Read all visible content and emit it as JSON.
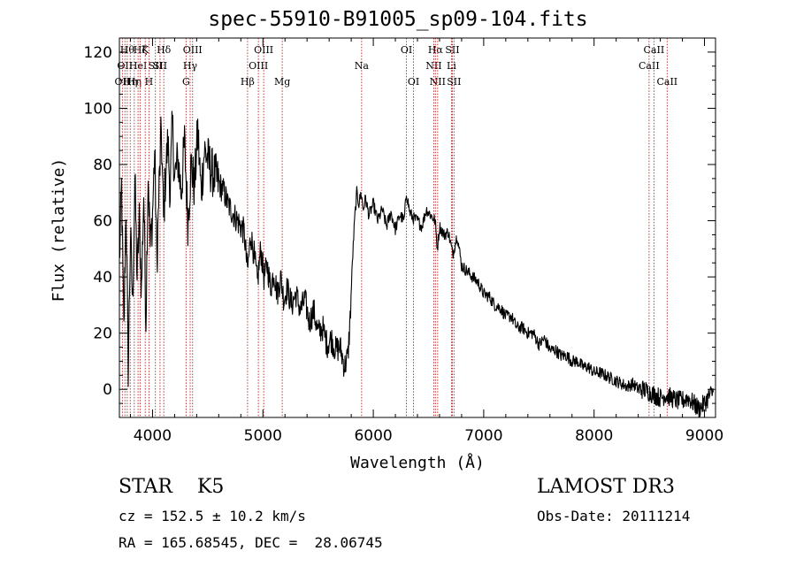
{
  "title": "spec-55910-B91005_sp09-104.fits",
  "info": {
    "class": "STAR",
    "subclass": "K5",
    "survey": "LAMOST DR3",
    "cz": "cz = 152.5 ± 10.2 km/s",
    "obs_date": "Obs-Date: 20111214",
    "radec": "RA = 165.68545, DEC =  28.06745"
  },
  "chart_data": {
    "type": "line",
    "title": "spec-55910-B91005_sp09-104.fits",
    "xlabel": "Wavelength (Å)",
    "ylabel": "Flux (relative)",
    "xlim": [
      3700,
      9100
    ],
    "ylim": [
      -10,
      125
    ],
    "xticks": [
      4000,
      5000,
      6000,
      7000,
      8000,
      9000
    ],
    "yticks": [
      0,
      20,
      40,
      60,
      80,
      100,
      120
    ],
    "series": [
      {
        "name": "spectrum",
        "x": [
          3700,
          3720,
          3740,
          3760,
          3780,
          3800,
          3820,
          3840,
          3860,
          3880,
          3900,
          3920,
          3940,
          3960,
          3980,
          4000,
          4020,
          4040,
          4060,
          4080,
          4100,
          4120,
          4140,
          4160,
          4180,
          4200,
          4230,
          4260,
          4290,
          4320,
          4350,
          4380,
          4410,
          4440,
          4470,
          4500,
          4530,
          4560,
          4590,
          4620,
          4650,
          4680,
          4710,
          4740,
          4770,
          4800,
          4830,
          4860,
          4890,
          4920,
          4950,
          4980,
          5010,
          5040,
          5070,
          5100,
          5130,
          5160,
          5190,
          5220,
          5260,
          5300,
          5340,
          5380,
          5420,
          5460,
          5500,
          5540,
          5580,
          5620,
          5660,
          5700,
          5740,
          5770,
          5790,
          5810,
          5830,
          5850,
          5870,
          5890,
          5910,
          5930,
          5960,
          6000,
          6040,
          6080,
          6120,
          6160,
          6200,
          6240,
          6280,
          6300,
          6330,
          6360,
          6400,
          6440,
          6480,
          6520,
          6560,
          6580,
          6600,
          6640,
          6680,
          6720,
          6760,
          6800,
          6850,
          6900,
          6950,
          7000,
          7050,
          7100,
          7150,
          7200,
          7250,
          7300,
          7350,
          7400,
          7450,
          7500,
          7550,
          7600,
          7650,
          7700,
          7750,
          7800,
          7850,
          7900,
          7950,
          8000,
          8050,
          8100,
          8150,
          8200,
          8250,
          8300,
          8350,
          8400,
          8450,
          8500,
          8550,
          8600,
          8650,
          8700,
          8750,
          8800,
          8850,
          8900,
          8950,
          9000,
          9050,
          9080
        ],
        "y": [
          45,
          72,
          20,
          65,
          8,
          55,
          30,
          75,
          40,
          60,
          35,
          70,
          25,
          78,
          50,
          62,
          85,
          45,
          72,
          92,
          60,
          78,
          88,
          70,
          95,
          75,
          82,
          70,
          88,
          60,
          80,
          72,
          92,
          70,
          85,
          82,
          78,
          76,
          74,
          72,
          70,
          66,
          64,
          62,
          60,
          58,
          56,
          42,
          55,
          48,
          38,
          50,
          40,
          44,
          36,
          42,
          34,
          40,
          32,
          36,
          30,
          34,
          28,
          32,
          24,
          28,
          20,
          22,
          16,
          18,
          14,
          15,
          8,
          12,
          25,
          45,
          60,
          70,
          66,
          70,
          64,
          68,
          62,
          66,
          60,
          64,
          58,
          63,
          57,
          62,
          60,
          70,
          63,
          61,
          60,
          58,
          64,
          62,
          60,
          50,
          58,
          55,
          56,
          48,
          55,
          44,
          42,
          40,
          38,
          34,
          33,
          30,
          29,
          26,
          26,
          22,
          22,
          20,
          20,
          16,
          18,
          14,
          14,
          12,
          12,
          10,
          10,
          8,
          8,
          6,
          6,
          5,
          4,
          3,
          2,
          1,
          2,
          0,
          0,
          -1,
          -2,
          -3,
          -2,
          -3,
          -4,
          -4,
          -3,
          -5,
          -7,
          -5,
          -2,
          -1
        ]
      }
    ],
    "line_markers": [
      {
        "wl": 3727,
        "label": "OII",
        "row": 3
      },
      {
        "wl": 3750,
        "label": "OII",
        "row": 2
      },
      {
        "wl": 3771,
        "label": "Hθ",
        "row": 1
      },
      {
        "wl": 3798,
        "label": "Hη",
        "row": 3
      },
      {
        "wl": 3835,
        "label": "Hη",
        "row": 3
      },
      {
        "wl": 3869,
        "label": "HeI",
        "row": 2
      },
      {
        "wl": 3889,
        "label": "Hζ",
        "row": 1
      },
      {
        "wl": 3934,
        "label": "K",
        "row": 1
      },
      {
        "wl": 3968,
        "label": "H",
        "row": 3
      },
      {
        "wl": 4026,
        "label": "SII",
        "row": 2
      },
      {
        "wl": 4068,
        "label": "SII",
        "row": 2
      },
      {
        "wl": 4102,
        "label": "Hδ",
        "row": 1
      },
      {
        "wl": 4304,
        "label": "G",
        "row": 3
      },
      {
        "wl": 4341,
        "label": "Hγ",
        "row": 2
      },
      {
        "wl": 4363,
        "label": "OIII",
        "row": 1
      },
      {
        "wl": 4861,
        "label": "Hβ",
        "row": 3
      },
      {
        "wl": 4959,
        "label": "OIII",
        "row": 2
      },
      {
        "wl": 5007,
        "label": "OIII",
        "row": 1
      },
      {
        "wl": 5175,
        "label": "Mg",
        "row": 3
      },
      {
        "wl": 5894,
        "label": "Na",
        "row": 2
      },
      {
        "wl": 6300,
        "label": "OI",
        "row": 1
      },
      {
        "wl": 6364,
        "label": "OI",
        "row": 3
      },
      {
        "wl": 6548,
        "label": "NII",
        "row": 2
      },
      {
        "wl": 6563,
        "label": "Hα",
        "row": 1
      },
      {
        "wl": 6583,
        "label": "NII",
        "row": 3
      },
      {
        "wl": 6708,
        "label": "Li",
        "row": 2
      },
      {
        "wl": 6716,
        "label": "SII",
        "row": 1
      },
      {
        "wl": 6731,
        "label": "SII",
        "row": 3
      },
      {
        "wl": 8498,
        "label": "CaII",
        "row": 2
      },
      {
        "wl": 8542,
        "label": "CaII",
        "row": 1
      },
      {
        "wl": 8662,
        "label": "CaII",
        "row": 3
      }
    ],
    "colors": {
      "spectrum": "#000000",
      "markers": "#b22222"
    }
  }
}
